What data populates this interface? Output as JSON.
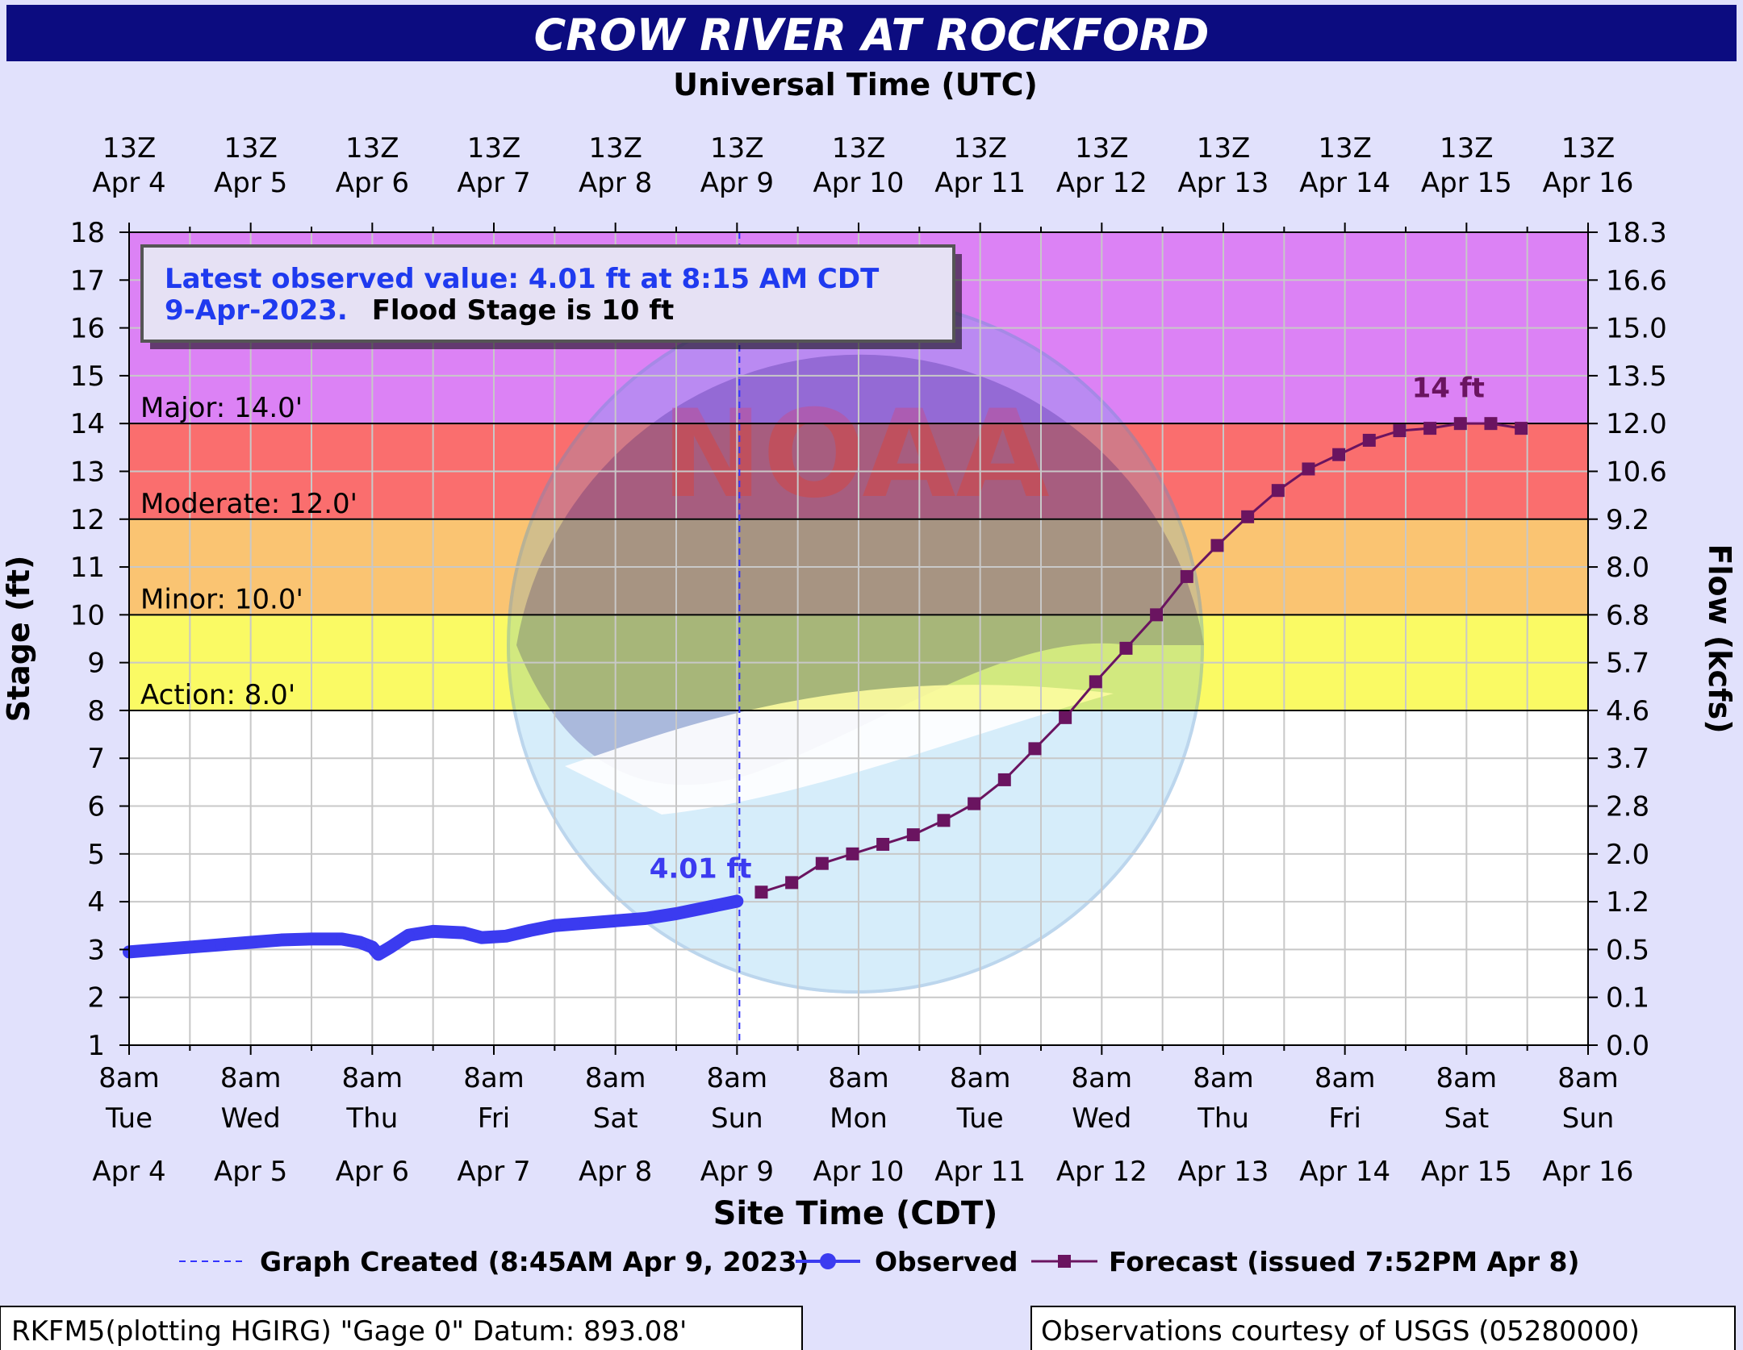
{
  "title": "CROW RIVER AT ROCKFORD",
  "top_axis_title": "Universal Time (UTC)",
  "bottom_axis_title": "Site Time (CDT)",
  "left_axis_title": "Stage (ft)",
  "right_axis_title": "Flow (kcfs)",
  "info_box": {
    "line1": "Latest observed value: 4.01 ft at 8:15 AM CDT",
    "line2_date": "9-Apr-2023.",
    "line2_flood": "Flood Stage is 10 ft"
  },
  "legend": {
    "created": "Graph Created (8:45AM Apr 9, 2023)",
    "observed": "Observed",
    "forecast": "Forecast (issued 7:52PM Apr 8)"
  },
  "footer": {
    "left": "RKFM5(plotting HGIRG) \"Gage 0\" Datum: 893.08'",
    "right": "Observations courtesy of USGS (05280000)"
  },
  "colors": {
    "title_bar": "#0c0c80",
    "background": "#e1e1fc",
    "major": "#dc82f5",
    "moderate": "#fa6e6e",
    "minor": "#fac472",
    "action": "#fafa64",
    "observed": "#3b3bf0",
    "forecast": "#6a1460",
    "created_line": "#3333ff"
  },
  "chart_data": {
    "type": "line",
    "x_top_labels": [
      [
        "13Z",
        "Apr 4"
      ],
      [
        "13Z",
        "Apr 5"
      ],
      [
        "13Z",
        "Apr 6"
      ],
      [
        "13Z",
        "Apr 7"
      ],
      [
        "13Z",
        "Apr 8"
      ],
      [
        "13Z",
        "Apr 9"
      ],
      [
        "13Z",
        "Apr 10"
      ],
      [
        "13Z",
        "Apr 11"
      ],
      [
        "13Z",
        "Apr 12"
      ],
      [
        "13Z",
        "Apr 13"
      ],
      [
        "13Z",
        "Apr 14"
      ],
      [
        "13Z",
        "Apr 15"
      ],
      [
        "13Z",
        "Apr 16"
      ]
    ],
    "x_bottom_labels": [
      [
        "8am",
        "Tue",
        "Apr 4"
      ],
      [
        "8am",
        "Wed",
        "Apr 5"
      ],
      [
        "8am",
        "Thu",
        "Apr 6"
      ],
      [
        "8am",
        "Fri",
        "Apr 7"
      ],
      [
        "8am",
        "Sat",
        "Apr 8"
      ],
      [
        "8am",
        "Sun",
        "Apr 9"
      ],
      [
        "8am",
        "Mon",
        "Apr 10"
      ],
      [
        "8am",
        "Tue",
        "Apr 11"
      ],
      [
        "8am",
        "Wed",
        "Apr 12"
      ],
      [
        "8am",
        "Thu",
        "Apr 13"
      ],
      [
        "8am",
        "Fri",
        "Apr 14"
      ],
      [
        "8am",
        "Sat",
        "Apr 15"
      ],
      [
        "8am",
        "Sun",
        "Apr 16"
      ]
    ],
    "x_unit": "days since 8am CDT Apr 4",
    "xlim": [
      0,
      12
    ],
    "ylim": [
      1,
      18
    ],
    "y_ticks": [
      1,
      2,
      3,
      4,
      5,
      6,
      7,
      8,
      9,
      10,
      11,
      12,
      13,
      14,
      15,
      16,
      17,
      18
    ],
    "y2_labels": [
      "0.0",
      "0.1",
      "0.5",
      "1.2",
      "2.0",
      "2.8",
      "3.7",
      "4.6",
      "5.7",
      "6.8",
      "8.0",
      "9.2",
      "10.6",
      "12.0",
      "13.5",
      "15.0",
      "16.6",
      "18.3"
    ],
    "flood_categories": [
      {
        "name": "Major",
        "label": "Major: 14.0'",
        "from": 14,
        "to": 18,
        "color": "#dc82f5"
      },
      {
        "name": "Moderate",
        "label": "Moderate: 12.0'",
        "from": 12,
        "to": 14,
        "color": "#fa6e6e"
      },
      {
        "name": "Minor",
        "label": "Minor: 10.0'",
        "from": 10,
        "to": 12,
        "color": "#fac472"
      },
      {
        "name": "Action",
        "label": "Action: 8.0'",
        "from": 8,
        "to": 10,
        "color": "#fafa64"
      }
    ],
    "created_x": 5.02,
    "series": [
      {
        "name": "Observed",
        "x": [
          0,
          0.25,
          0.5,
          0.75,
          1.0,
          1.25,
          1.5,
          1.75,
          1.9,
          2.0,
          2.05,
          2.15,
          2.3,
          2.5,
          2.75,
          2.9,
          3.1,
          3.3,
          3.5,
          3.75,
          4.0,
          4.25,
          4.5,
          4.75,
          5.0
        ],
        "y": [
          2.95,
          3.0,
          3.05,
          3.1,
          3.15,
          3.2,
          3.22,
          3.22,
          3.15,
          3.05,
          2.9,
          3.05,
          3.3,
          3.38,
          3.35,
          3.25,
          3.28,
          3.4,
          3.5,
          3.55,
          3.6,
          3.65,
          3.75,
          3.88,
          4.01
        ]
      },
      {
        "name": "Forecast",
        "x": [
          5.2,
          5.45,
          5.7,
          5.95,
          6.2,
          6.45,
          6.7,
          6.95,
          7.2,
          7.45,
          7.7,
          7.95,
          8.2,
          8.45,
          8.7,
          8.95,
          9.2,
          9.45,
          9.7,
          9.95,
          10.2,
          10.45,
          10.7,
          10.95,
          11.2,
          11.45
        ],
        "y": [
          4.2,
          4.4,
          4.8,
          5.0,
          5.2,
          5.4,
          5.7,
          6.05,
          6.55,
          7.2,
          7.85,
          8.6,
          9.3,
          10.0,
          10.8,
          11.45,
          12.05,
          12.6,
          13.05,
          13.35,
          13.65,
          13.85,
          13.9,
          14.0,
          14.0,
          13.9
        ]
      }
    ],
    "annotations": [
      {
        "text": "4.01 ft",
        "x": 4.7,
        "y": 4.5
      },
      {
        "text": "14 ft",
        "x": 10.85,
        "y": 14.55
      }
    ]
  }
}
